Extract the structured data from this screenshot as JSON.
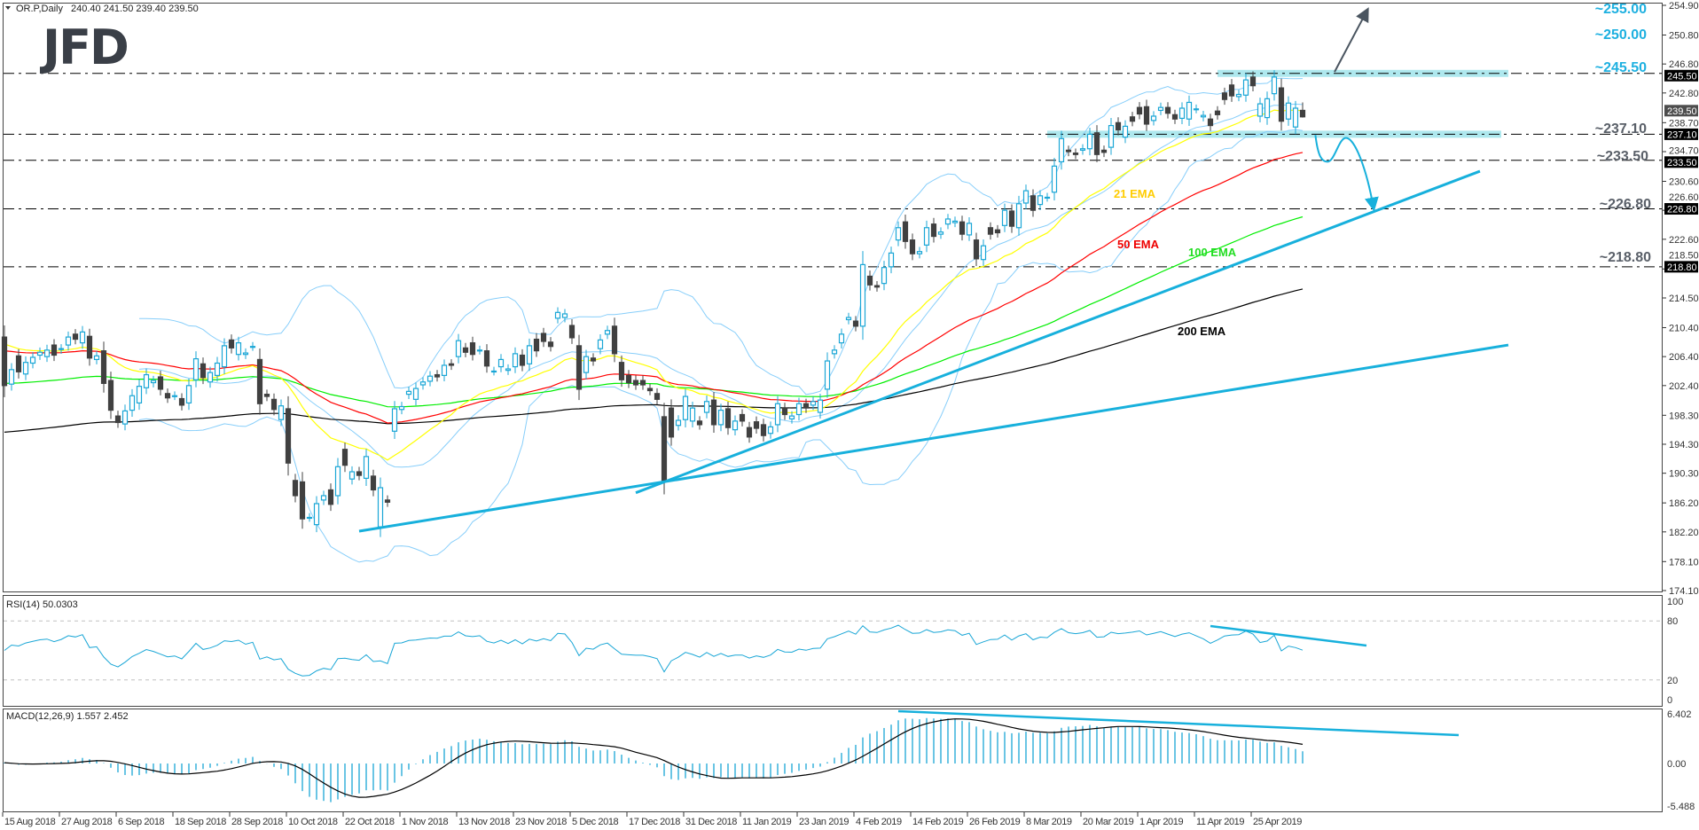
{
  "header": {
    "symbol": "OR.P,Daily",
    "ohlc": "240.40 241.50 239.40 239.50"
  },
  "logo": "JFD",
  "colors": {
    "up": "#19a6d6",
    "down": "#404040",
    "bollinger": "#87cefa",
    "ema21": "#ffff00",
    "ema50": "#ff0000",
    "ema100": "#00ee00",
    "ema200": "#000000",
    "trend": "#17b0dc",
    "band": "#aee8ee",
    "level_cyan": "#1db0e0",
    "level_gray": "#5a6069",
    "arrow_gray": "#4a5560"
  },
  "chart_data": {
    "type": "candlestick",
    "title": "OR.P,Daily",
    "bars_oc": [
      [
        209.1,
        202.4
      ],
      [
        202.6,
        204.6
      ],
      [
        206.5,
        204.3
      ],
      [
        204,
        205.6
      ],
      [
        205.5,
        206.3
      ],
      [
        206.6,
        207
      ],
      [
        206.4,
        207.3
      ],
      [
        208,
        206.6
      ],
      [
        207.4,
        207.5
      ],
      [
        208,
        209.1
      ],
      [
        209.5,
        208.8
      ],
      [
        208.3,
        209.8
      ],
      [
        209.2,
        206.2
      ],
      [
        206,
        206.5
      ],
      [
        207.2,
        202.7
      ],
      [
        203.1,
        199
      ],
      [
        198.2,
        197.3
      ],
      [
        197.1,
        198.9
      ],
      [
        199,
        201
      ],
      [
        200,
        202.3
      ],
      [
        202.1,
        203.9
      ],
      [
        202.8,
        203.1
      ],
      [
        203.6,
        201.9
      ],
      [
        201.3,
        200.7
      ],
      [
        201,
        201
      ],
      [
        200.6,
        199.7
      ],
      [
        200,
        202.4
      ],
      [
        203.2,
        206.1
      ],
      [
        205.4,
        203.5
      ],
      [
        202.9,
        204.2
      ],
      [
        203.8,
        205.5
      ],
      [
        205,
        207.9
      ],
      [
        208.7,
        207.6
      ],
      [
        206.7,
        208.3
      ],
      [
        206.7,
        206.9
      ],
      [
        207.8,
        207.8
      ],
      [
        206,
        199.9
      ],
      [
        201.2,
        200.9
      ],
      [
        200.5,
        199.1
      ],
      [
        197.7,
        199.6
      ],
      [
        199.2,
        191.7
      ],
      [
        189.3,
        187.2
      ],
      [
        189.1,
        184
      ],
      [
        184.2,
        184.2
      ],
      [
        183.2,
        186.1
      ],
      [
        186.6,
        187.2
      ],
      [
        188,
        186
      ],
      [
        187.2,
        191.2
      ],
      [
        193.6,
        191.4
      ],
      [
        189.5,
        190.5
      ],
      [
        190.5,
        190
      ],
      [
        189.6,
        192.6
      ],
      [
        189.9,
        188
      ],
      [
        182.9,
        188.3
      ],
      [
        186.6,
        186.3
      ],
      [
        196.1,
        199.2
      ],
      [
        199.1,
        199.5
      ],
      [
        201.2,
        201.6
      ],
      [
        200.5,
        202
      ],
      [
        202.5,
        202.9
      ],
      [
        203,
        203.7
      ],
      [
        203.9,
        203.6
      ],
      [
        203.8,
        205.2
      ],
      [
        205.4,
        205.2
      ],
      [
        206.4,
        208.6
      ],
      [
        207.6,
        207
      ],
      [
        208.3,
        206.7
      ],
      [
        207.3,
        207.3
      ],
      [
        207.2,
        205.1
      ],
      [
        204.4,
        204.4
      ],
      [
        205,
        206
      ],
      [
        204.5,
        204.7
      ],
      [
        205,
        206.8
      ],
      [
        206.6,
        205.2
      ],
      [
        205.4,
        207.9
      ],
      [
        208.8,
        207.2
      ],
      [
        209.6,
        208.5
      ],
      [
        208.4,
        207.8
      ],
      [
        211.7,
        212.5
      ],
      [
        211.8,
        212.3
      ],
      [
        210.7,
        209
      ],
      [
        207.9,
        201.9
      ],
      [
        204.2,
        206.4
      ],
      [
        206.2,
        205.8
      ],
      [
        207.5,
        208.7
      ],
      [
        209.5,
        210
      ],
      [
        210.6,
        206.8
      ],
      [
        205.6,
        203.2
      ],
      [
        203.8,
        202.8
      ],
      [
        203.1,
        202.5
      ],
      [
        203.1,
        202.5
      ],
      [
        202,
        201.7
      ],
      [
        201.3,
        200.5
      ],
      [
        198.1,
        189.3
      ],
      [
        199.3,
        195.3
      ],
      [
        196.9,
        197.6
      ],
      [
        197.7,
        200.9
      ],
      [
        197.5,
        199.3
      ],
      [
        197.5,
        197
      ],
      [
        198.7,
        200.2
      ],
      [
        200.4,
        197
      ],
      [
        197,
        199
      ],
      [
        199.2,
        196.6
      ],
      [
        196.3,
        197.5
      ],
      [
        198.4,
        197.5
      ],
      [
        196.6,
        195.3
      ],
      [
        197.4,
        196.5
      ],
      [
        197,
        195.5
      ],
      [
        195.8,
        196.7
      ],
      [
        197,
        199.9
      ],
      [
        199.3,
        198.4
      ],
      [
        197.8,
        198.2
      ],
      [
        198.4,
        199.9
      ],
      [
        199.9,
        199.3
      ],
      [
        199.7,
        200.2
      ],
      [
        198.7,
        200.4
      ],
      [
        201.9,
        205.8
      ],
      [
        206.8,
        207.3
      ],
      [
        208.3,
        209.5
      ],
      [
        211.5,
        211.8
      ],
      [
        211.3,
        210.6
      ],
      [
        210.6,
        219.1
      ],
      [
        217.5,
        216.3
      ],
      [
        216.2,
        216
      ],
      [
        216.5,
        218.7
      ],
      [
        218.8,
        220.7
      ],
      [
        222.5,
        224.2
      ],
      [
        225,
        222.3
      ],
      [
        222.5,
        220.6
      ],
      [
        220.6,
        220.9
      ],
      [
        221.8,
        224.2
      ],
      [
        224.7,
        223
      ],
      [
        223.3,
        223.6
      ],
      [
        224.7,
        225.4
      ],
      [
        224.9,
        225.1
      ],
      [
        225,
        223.3
      ],
      [
        223.2,
        224.8
      ],
      [
        222.5,
        219.9
      ],
      [
        219.8,
        221.7
      ],
      [
        224.2,
        223.3
      ],
      [
        223.9,
        223.5
      ],
      [
        224.5,
        226.6
      ],
      [
        226.5,
        224.4
      ],
      [
        224.2,
        227.5
      ],
      [
        227.6,
        229.3
      ],
      [
        228.6,
        226.6
      ],
      [
        227.4,
        228.6
      ],
      [
        228.4,
        228.4
      ],
      [
        229.1,
        232.7
      ],
      [
        233.3,
        236.5
      ],
      [
        234.9,
        234.7
      ],
      [
        234.5,
        234.3
      ],
      [
        234.9,
        235.1
      ],
      [
        235.1,
        237.1
      ],
      [
        237.3,
        234.3
      ],
      [
        234.9,
        234.6
      ],
      [
        235.3,
        238.3
      ],
      [
        238.7,
        237.7
      ],
      [
        236.7,
        238.2
      ],
      [
        239.5,
        238.9
      ],
      [
        240.8,
        239.9
      ],
      [
        240.9,
        238.5
      ],
      [
        239,
        239.6
      ],
      [
        240.4,
        240.8
      ],
      [
        240.8,
        240
      ],
      [
        239.8,
        239.2
      ],
      [
        239.3,
        240.7
      ],
      [
        239.2,
        241.5
      ],
      [
        240.6,
        240.6
      ],
      [
        239.5,
        239.7
      ],
      [
        239.2,
        238.3
      ],
      [
        240.3,
        239.8
      ],
      [
        242.8,
        241.9
      ],
      [
        243.9,
        242.4
      ],
      [
        242.3,
        242.6
      ],
      [
        242.5,
        244.6
      ],
      [
        245,
        243.8
      ],
      [
        239.6,
        241.3
      ],
      [
        239.4,
        242
      ],
      [
        242.7,
        245
      ],
      [
        243.5,
        238.9
      ],
      [
        239.2,
        241.4
      ],
      [
        238.1,
        240.7
      ],
      [
        240.4,
        239.5
      ]
    ],
    "last_bar": {
      "open": 240.4,
      "high": 241.5,
      "low": 239.4,
      "close": 239.5
    },
    "ylim": [
      174.1,
      254.9
    ],
    "y_ticks": [
      "254.90",
      "250.80",
      "246.80",
      "242.80",
      "238.70",
      "234.70",
      "230.60",
      "226.60",
      "222.60",
      "218.50",
      "214.50",
      "210.40",
      "206.40",
      "202.40",
      "198.30",
      "194.30",
      "190.30",
      "186.20",
      "182.20",
      "178.10",
      "174.10"
    ],
    "price_labels": [
      {
        "value": 245.5,
        "text": "245.50"
      },
      {
        "value": 239.5,
        "text": "239.50",
        "current": true
      },
      {
        "value": 237.1,
        "text": "237.10"
      },
      {
        "value": 233.5,
        "text": "233.50"
      },
      {
        "value": 226.8,
        "text": "226.80"
      },
      {
        "value": 218.8,
        "text": "218.80"
      }
    ],
    "x_ticks": [
      {
        "bar": 0,
        "label": "15 Aug 2018"
      },
      {
        "bar": 8,
        "label": "27 Aug 2018"
      },
      {
        "bar": 16,
        "label": "6 Sep 2018"
      },
      {
        "bar": 24,
        "label": "18 Sep 2018"
      },
      {
        "bar": 32,
        "label": "28 Sep 2018"
      },
      {
        "bar": 40,
        "label": "10 Oct 2018"
      },
      {
        "bar": 48,
        "label": "22 Oct 2018"
      },
      {
        "bar": 56,
        "label": "1 Nov 2018"
      },
      {
        "bar": 64,
        "label": "13 Nov 2018"
      },
      {
        "bar": 72,
        "label": "23 Nov 2018"
      },
      {
        "bar": 80,
        "label": "5 Dec 2018"
      },
      {
        "bar": 88,
        "label": "17 Dec 2018"
      },
      {
        "bar": 96,
        "label": "31 Dec 2018"
      },
      {
        "bar": 104,
        "label": "11 Jan 2019"
      },
      {
        "bar": 112,
        "label": "23 Jan 2019"
      },
      {
        "bar": 120,
        "label": "4 Feb 2019"
      },
      {
        "bar": 128,
        "label": "14 Feb 2019"
      },
      {
        "bar": 136,
        "label": "26 Feb 2019"
      },
      {
        "bar": 144,
        "label": "8 Mar 2019"
      },
      {
        "bar": 152,
        "label": "20 Mar 2019"
      },
      {
        "bar": 160,
        "label": "1 Apr 2019"
      },
      {
        "bar": 168,
        "label": "11 Apr 2019"
      },
      {
        "bar": 176,
        "label": "25 Apr 2019"
      }
    ],
    "levels": [
      245.5,
      237.1,
      233.5,
      226.8,
      218.8
    ],
    "zones": [
      {
        "price": 245.5,
        "from_bar": 171,
        "to_bar": 212
      },
      {
        "price": 237.1,
        "from_bar": 147,
        "to_bar": 211
      }
    ],
    "trendlines": [
      {
        "from": [
          50,
          182.3
        ],
        "to": [
          212,
          208.0
        ]
      },
      {
        "from": [
          89,
          187.6
        ],
        "to": [
          208,
          232.0
        ]
      }
    ],
    "up_arrow": {
      "from": [
        187.5,
        245.7
      ],
      "to": [
        192.1,
        254.2
      ]
    },
    "down_path": [
      [
        184.8,
        237.0
      ],
      [
        186.5,
        233.3
      ],
      [
        189.1,
        236.6
      ],
      [
        193,
        226.9
      ]
    ],
    "level_labels": {
      "l255": "~255.00",
      "l250": "~250.00",
      "l245": "~245.50",
      "l237": "~237.10",
      "l233": "~233.50",
      "l226": "~226.80",
      "l218": "~218.80"
    },
    "ema_labels": {
      "e21": "21 EMA",
      "e50": "50 EMA",
      "e100": "100 EMA",
      "e200": "200 EMA"
    },
    "ema_seeds": {
      "21": 208.7,
      "50": 207.4,
      "100": 202.7,
      "200": 195.9
    },
    "bollinger": {
      "period": 20,
      "deviation": 2
    },
    "rsi": {
      "label": "RSI(14) 50.0303",
      "period": 14,
      "levels": [
        80,
        20
      ],
      "ticks": [
        "100",
        "80",
        "20",
        "0"
      ],
      "trendline": {
        "from": [
          170,
          74.8
        ],
        "to": [
          192,
          55
        ]
      }
    },
    "macd": {
      "label": "MACD(12,26,9) 1.557 2.452",
      "fast": 12,
      "slow": 26,
      "signal": 9,
      "ticks": [
        "6.402",
        "0.00",
        "-5.488"
      ],
      "range": [
        -5.488,
        6.402
      ],
      "trendline": {
        "from": [
          126,
          6.74
        ],
        "to": [
          205,
          3.66
        ]
      }
    }
  }
}
